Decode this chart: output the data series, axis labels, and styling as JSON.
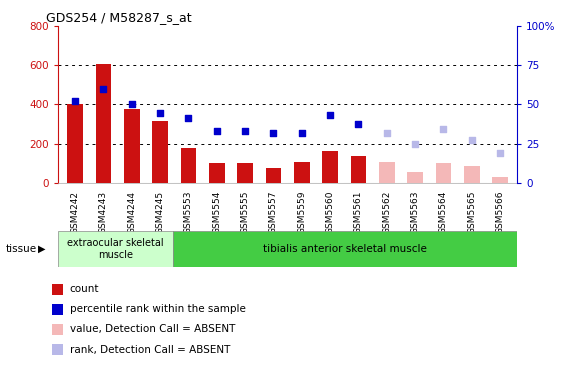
{
  "title": "GDS254 / M58287_s_at",
  "categories": [
    "GSM4242",
    "GSM4243",
    "GSM4244",
    "GSM4245",
    "GSM5553",
    "GSM5554",
    "GSM5555",
    "GSM5557",
    "GSM5559",
    "GSM5560",
    "GSM5561",
    "GSM5562",
    "GSM5563",
    "GSM5564",
    "GSM5565",
    "GSM5566"
  ],
  "bar_values": [
    400,
    605,
    375,
    315,
    180,
    100,
    100,
    75,
    105,
    165,
    135,
    null,
    null,
    null,
    null,
    null
  ],
  "bar_absent_values": [
    null,
    null,
    null,
    null,
    null,
    null,
    null,
    null,
    null,
    null,
    null,
    105,
    55,
    100,
    85,
    30
  ],
  "dot_values": [
    415,
    480,
    400,
    355,
    330,
    263,
    263,
    253,
    255,
    348,
    300,
    null,
    null,
    null,
    null,
    null
  ],
  "dot_absent_values": [
    null,
    null,
    null,
    null,
    null,
    null,
    null,
    null,
    null,
    null,
    null,
    253,
    200,
    275,
    220,
    153
  ],
  "bar_color": "#cc1111",
  "bar_absent_color": "#f4b8b8",
  "dot_color": "#0000cc",
  "dot_absent_color": "#b8b8e8",
  "ylim_left": [
    0,
    800
  ],
  "ylim_right": [
    0,
    100
  ],
  "yticks_left": [
    0,
    200,
    400,
    600,
    800
  ],
  "yticks_right": [
    0,
    25,
    50,
    75,
    100
  ],
  "ytick_labels_right": [
    "0",
    "25",
    "50",
    "75",
    "100%"
  ],
  "tissue_groups": [
    {
      "label": "extraocular skeletal\nmuscle",
      "start": 0,
      "end": 4,
      "color": "#ccffcc"
    },
    {
      "label": "tibialis anterior skeletal muscle",
      "start": 4,
      "end": 16,
      "color": "#44cc44"
    }
  ],
  "tissue_label": "tissue",
  "legend_items": [
    {
      "label": "count",
      "color": "#cc1111"
    },
    {
      "label": "percentile rank within the sample",
      "color": "#0000cc"
    },
    {
      "label": "value, Detection Call = ABSENT",
      "color": "#f4b8b8"
    },
    {
      "label": "rank, Detection Call = ABSENT",
      "color": "#b8b8e8"
    }
  ],
  "axis_color_left": "#cc1111",
  "axis_color_right": "#0000cc",
  "dot_size": 22
}
